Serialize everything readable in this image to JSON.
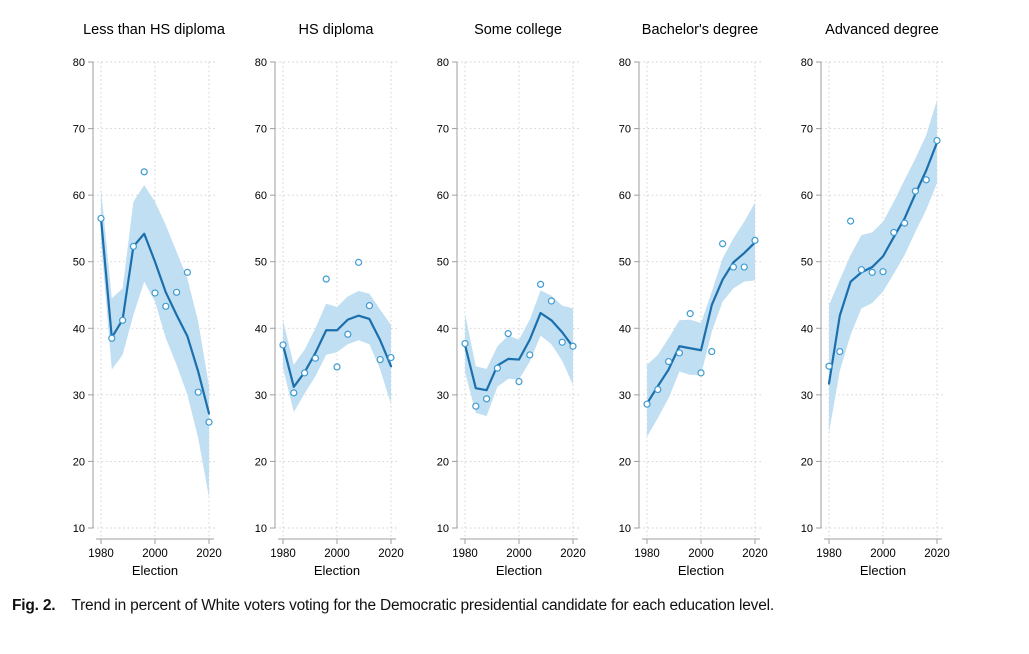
{
  "figure": {
    "caption_label": "Fig. 2.",
    "caption_text": "Trend in percent of White voters voting for the Democratic presidential candidate for each education level."
  },
  "colors": {
    "band": "#c1dff2",
    "line": "#1b6fad",
    "marker_stroke": "#3f9bd1",
    "marker_fill": "#ffffff",
    "grid": "#cdcdcd",
    "axis": "#9f9f9f",
    "text": "#000000"
  },
  "chart_data": [
    {
      "type": "line",
      "title": "Less than HS diploma",
      "xlabel": "Election",
      "ylim": [
        10,
        80
      ],
      "yticks": [
        10,
        20,
        30,
        40,
        50,
        60,
        70,
        80
      ],
      "xticks": [
        1980,
        2000,
        2020
      ],
      "x": [
        1980,
        1984,
        1988,
        1992,
        1996,
        2000,
        2004,
        2008,
        2012,
        2016,
        2020
      ],
      "points": [
        56.5,
        38.5,
        41.2,
        52.3,
        63.5,
        45.3,
        43.3,
        45.4,
        48.4,
        30.4,
        25.9
      ],
      "trend": [
        56.5,
        38.6,
        41.3,
        52.3,
        54.2,
        50.0,
        45.4,
        42.0,
        38.8,
        33.5,
        27.2
      ],
      "band_upper": [
        61.0,
        44.5,
        46.0,
        59.0,
        61.5,
        59.0,
        55.5,
        51.5,
        47.5,
        41.0,
        31.3
      ],
      "band_lower": [
        53.0,
        33.8,
        36.0,
        42.0,
        47.0,
        44.0,
        38.5,
        34.5,
        30.0,
        23.5,
        14.6
      ]
    },
    {
      "type": "line",
      "title": "HS diploma",
      "xlabel": "Election",
      "ylim": [
        10,
        80
      ],
      "yticks": [
        10,
        20,
        30,
        40,
        50,
        60,
        70,
        80
      ],
      "xticks": [
        1980,
        2000,
        2020
      ],
      "x": [
        1980,
        1984,
        1988,
        1992,
        1996,
        2000,
        2004,
        2008,
        2012,
        2016,
        2020
      ],
      "points": [
        37.5,
        30.3,
        33.3,
        35.5,
        47.4,
        34.2,
        39.1,
        49.9,
        43.4,
        35.3,
        35.6
      ],
      "trend": [
        37.5,
        31.2,
        33.4,
        36.3,
        39.7,
        39.7,
        41.3,
        41.9,
        41.4,
        38.2,
        34.3
      ],
      "band_upper": [
        41.2,
        34.5,
        36.8,
        40.0,
        43.7,
        43.2,
        44.8,
        45.6,
        45.2,
        42.8,
        40.5
      ],
      "band_lower": [
        34.0,
        27.4,
        30.2,
        32.8,
        36.0,
        36.4,
        37.6,
        38.2,
        37.6,
        33.8,
        28.6
      ]
    },
    {
      "type": "line",
      "title": "Some college",
      "xlabel": "Election",
      "ylim": [
        10,
        80
      ],
      "yticks": [
        10,
        20,
        30,
        40,
        50,
        60,
        70,
        80
      ],
      "xticks": [
        1980,
        2000,
        2020
      ],
      "x": [
        1980,
        1984,
        1988,
        1992,
        1996,
        2000,
        2004,
        2008,
        2012,
        2016,
        2020
      ],
      "points": [
        37.7,
        28.3,
        29.4,
        34.0,
        39.2,
        32.0,
        36.0,
        46.6,
        44.1,
        37.9,
        37.3
      ],
      "trend": [
        37.5,
        31.0,
        30.7,
        34.4,
        35.4,
        35.3,
        38.3,
        42.3,
        41.2,
        39.4,
        37.2
      ],
      "band_upper": [
        42.2,
        34.3,
        33.9,
        37.3,
        38.9,
        38.3,
        41.3,
        45.7,
        44.9,
        43.4,
        43.0
      ],
      "band_lower": [
        33.4,
        27.3,
        26.8,
        31.2,
        32.4,
        32.3,
        35.0,
        38.9,
        37.6,
        35.1,
        31.5
      ]
    },
    {
      "type": "line",
      "title": "Bachelor's degree",
      "xlabel": "Election",
      "ylim": [
        10,
        80
      ],
      "yticks": [
        10,
        20,
        30,
        40,
        50,
        60,
        70,
        80
      ],
      "xticks": [
        1980,
        2000,
        2020
      ],
      "x": [
        1980,
        1984,
        1988,
        1992,
        1996,
        2000,
        2004,
        2008,
        2012,
        2016,
        2020
      ],
      "points": [
        28.6,
        30.8,
        35.0,
        36.3,
        42.2,
        33.3,
        36.5,
        52.7,
        49.2,
        49.2,
        53.2
      ],
      "trend": [
        28.7,
        31.3,
        33.8,
        37.3,
        37.0,
        36.7,
        43.5,
        47.3,
        49.9,
        51.3,
        52.9
      ],
      "band_upper": [
        34.5,
        36.0,
        38.5,
        41.2,
        41.3,
        40.8,
        45.5,
        50.5,
        53.5,
        56.0,
        58.9
      ],
      "band_lower": [
        23.7,
        26.5,
        29.5,
        33.5,
        33.0,
        33.0,
        39.5,
        44.0,
        46.0,
        47.0,
        47.2
      ]
    },
    {
      "type": "line",
      "title": "Advanced degree",
      "xlabel": "Election",
      "ylim": [
        10,
        80
      ],
      "yticks": [
        10,
        20,
        30,
        40,
        50,
        60,
        70,
        80
      ],
      "xticks": [
        1980,
        2000,
        2020
      ],
      "x": [
        1980,
        1984,
        1988,
        1992,
        1996,
        2000,
        2004,
        2008,
        2012,
        2016,
        2020
      ],
      "points": [
        34.3,
        36.5,
        56.1,
        48.8,
        48.4,
        48.5,
        54.4,
        55.8,
        60.6,
        62.3,
        68.2
      ],
      "trend": [
        31.7,
        41.9,
        47.0,
        48.4,
        49.2,
        50.8,
        53.7,
        56.5,
        60.2,
        63.7,
        67.9
      ],
      "band_upper": [
        43.5,
        47.3,
        51.0,
        54.0,
        54.4,
        56.0,
        59.0,
        62.3,
        65.5,
        69.0,
        74.3
      ],
      "band_lower": [
        24.3,
        33.6,
        39.0,
        43.0,
        43.8,
        45.5,
        48.2,
        51.0,
        54.5,
        57.8,
        61.8
      ]
    }
  ]
}
